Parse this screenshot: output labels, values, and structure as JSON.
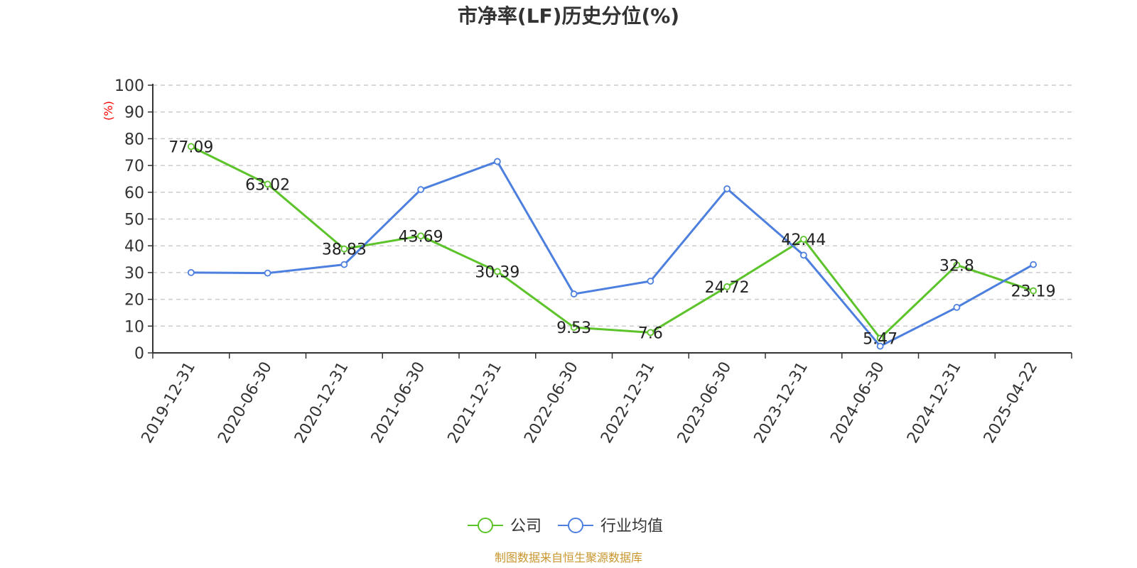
{
  "chart_data": {
    "type": "line",
    "title": "市净率(LF)历史分位(%)",
    "ylabel": "(%)",
    "ylim": [
      0,
      100
    ],
    "yticks": [
      0,
      10,
      20,
      30,
      40,
      50,
      60,
      70,
      80,
      90,
      100
    ],
    "grid": true,
    "legend_position": "bottom",
    "categories": [
      "2019-12-31",
      "2020-06-30",
      "2020-12-31",
      "2021-06-30",
      "2021-12-31",
      "2022-06-30",
      "2022-12-31",
      "2023-06-30",
      "2023-12-31",
      "2024-06-30",
      "2024-12-31",
      "2025-04-22"
    ],
    "series": [
      {
        "name": "公司",
        "color": "#5cc42a",
        "values": [
          77.09,
          63.02,
          38.83,
          43.69,
          30.39,
          9.53,
          7.6,
          24.72,
          42.44,
          5.47,
          32.8,
          23.19
        ],
        "labels": [
          "77.09",
          "63.02",
          "38.83",
          "43.69",
          "30.39",
          "9.53",
          "7.6",
          "24.72",
          "42.44",
          "5.47",
          "32.8",
          "23.19"
        ]
      },
      {
        "name": "行业均值",
        "color": "#4d7fdf",
        "values": [
          30,
          29.8,
          33,
          61,
          71.5,
          22,
          26.8,
          61.3,
          36.5,
          2.5,
          17,
          33
        ]
      }
    ],
    "source": "制图数据来自恒生聚源数据库",
    "source_color": "#c8962d",
    "unit_color": "#ff0000"
  }
}
